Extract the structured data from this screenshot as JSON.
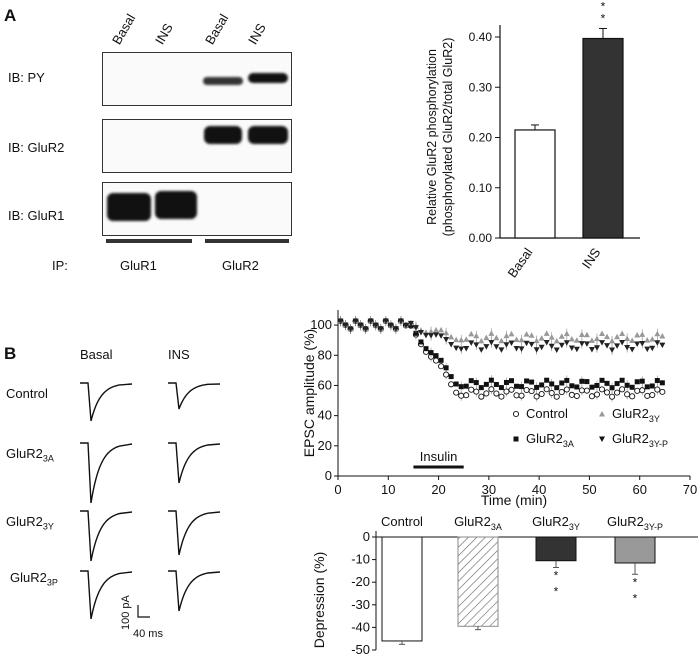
{
  "panelA": {
    "letter": "A",
    "lanes": [
      "Basal",
      "INS",
      "Basal",
      "INS"
    ],
    "blots": [
      "IB: PY",
      "IB: GluR2",
      "IB: GluR1"
    ],
    "ip_label": "IP:",
    "ip_groups": [
      "GluR1",
      "GluR2"
    ]
  },
  "panelB": {
    "letter": "B",
    "trace_cols": [
      "Basal",
      "INS"
    ],
    "trace_rows": [
      "Control",
      "GluR2",
      "GluR2",
      "GluR2"
    ],
    "trace_subs": [
      "",
      "3A",
      "3Y",
      "3P"
    ],
    "scale_v": "100 pA",
    "scale_h": "40 ms"
  },
  "chart_data": [
    {
      "type": "bar",
      "categories": [
        "Basal",
        "INS"
      ],
      "values": [
        0.215,
        0.397
      ],
      "errors": [
        0.01,
        0.02
      ],
      "ylabel_line1": "Relative GluR2 phosphorylation",
      "ylabel_line2": "(phosphorylated GluR2/total GluR2)",
      "ylim": [
        0,
        0.4
      ],
      "yticks": [
        "0.00",
        "0.10",
        "0.20",
        "0.30",
        "0.40"
      ],
      "colors": [
        "#ffffff",
        "#333333"
      ],
      "significance": [
        "",
        "* *"
      ]
    },
    {
      "type": "scatter",
      "xlabel": "Time (min)",
      "ylabel": "EPSC amplitude (%)",
      "xlim": [
        0,
        70
      ],
      "ylim": [
        0,
        110
      ],
      "xticks": [
        "0",
        "10",
        "20",
        "30",
        "40",
        "50",
        "60",
        "70"
      ],
      "yticks": [
        "0",
        "20",
        "40",
        "60",
        "80",
        "100"
      ],
      "annotation": "Insulin",
      "insulin_window": [
        15,
        25
      ],
      "legend": [
        {
          "name": "Control",
          "sub": "",
          "marker": "circle"
        },
        {
          "name": "GluR2",
          "sub": "3Y",
          "marker": "triangle-up"
        },
        {
          "name": "GluR2",
          "sub": "3A",
          "marker": "square"
        },
        {
          "name": "GluR2",
          "sub": "3Y-P",
          "marker": "triangle-down"
        }
      ],
      "series": [
        {
          "name": "Control",
          "marker": "circle",
          "color": "#ffffff",
          "baseline": 100,
          "plateau": 55
        },
        {
          "name": "GluR2 3A",
          "marker": "square",
          "color": "#111111",
          "baseline": 100,
          "plateau": 61
        },
        {
          "name": "GluR2 3Y",
          "marker": "triangle-up",
          "color": "#999999",
          "baseline": 100,
          "plateau": 92
        },
        {
          "name": "GluR2 3Y-P",
          "marker": "triangle-down",
          "color": "#222222",
          "baseline": 100,
          "plateau": 86
        }
      ]
    },
    {
      "type": "bar",
      "categories": [
        "Control",
        "GluR2",
        "GluR2",
        "GluR2"
      ],
      "category_subs": [
        "",
        "3A",
        "3Y",
        "3Y-P"
      ],
      "values": [
        -46,
        -39.5,
        -10.5,
        -11.5
      ],
      "errors": [
        1.5,
        1.5,
        3,
        5
      ],
      "ylabel": "Depression (%)",
      "ylim": [
        -50,
        0
      ],
      "yticks": [
        "0",
        "-10",
        "-20",
        "-30",
        "-40",
        "-50"
      ],
      "fills": [
        "#ffffff",
        "hatch",
        "#333333",
        "#999999"
      ],
      "significance": [
        "",
        "",
        "* *",
        "* *"
      ]
    }
  ]
}
